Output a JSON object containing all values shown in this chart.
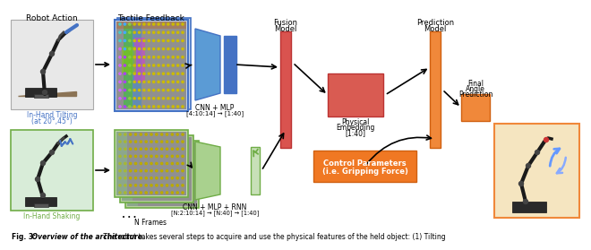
{
  "background": "#ffffff",
  "robot_action_label": "Robot Action",
  "tactile_feedback_label": "Tactile Feedback",
  "fusion_model_label": "Fusion\nModel",
  "physical_embedding_label": "Physical\nEmbedding\n[1:40]",
  "prediction_model_label": "Prediction\nModel",
  "final_angle_label": "Final\nAngle\nPrediction",
  "cnn_mlp_label": "CNN + MLP",
  "cnn_mlp_dims": "[4:10:14] → [1:40]",
  "cnn_mlp_rnn_label": "CNN + MLP + RNN",
  "cnn_mlp_rnn_dims": "[N:2:10:14] → [N:40] → [1:40]",
  "in_hand_tilting_label": "In-Hand Tilting",
  "in_hand_tilting_sub": "(at 20°,45°)",
  "in_hand_shaking_label": "In-Hand Shaking",
  "n_frames_label": "N Frames",
  "control_params_line1": "Control Parameters",
  "control_params_line2": "(i.e. Gripping Force)",
  "fig_number": "Fig. 3:",
  "fig_desc_bold": " Overview of the architecture.",
  "fig_caption": " The robot takes several steps to acquire and use the physical features of the held object: (1) Tilting",
  "col_blue": "#4472C4",
  "col_blue_light": "#5B9BD5",
  "col_blue_pale": "#9DC3E6",
  "col_green": "#70AD47",
  "col_green_light": "#A9D18E",
  "col_green_pale": "#C5E0A5",
  "col_red_bar": "#D9534F",
  "col_orange_bar": "#F0883A",
  "col_orange_box": "#F07823",
  "col_orange_small": "#F0883A",
  "col_tilting_text": "#4472C4",
  "col_shaking_text": "#70AD47",
  "col_caption_fig": "#000000",
  "col_black": "#000000",
  "col_white": "#ffffff",
  "col_tactile_bg_top": "#B0C8E8",
  "col_tactile_bg_bot": "#B8D8A0",
  "col_robot_bg_top": "#E8E8E8",
  "col_robot_bg_bot": "#D8ECD8"
}
